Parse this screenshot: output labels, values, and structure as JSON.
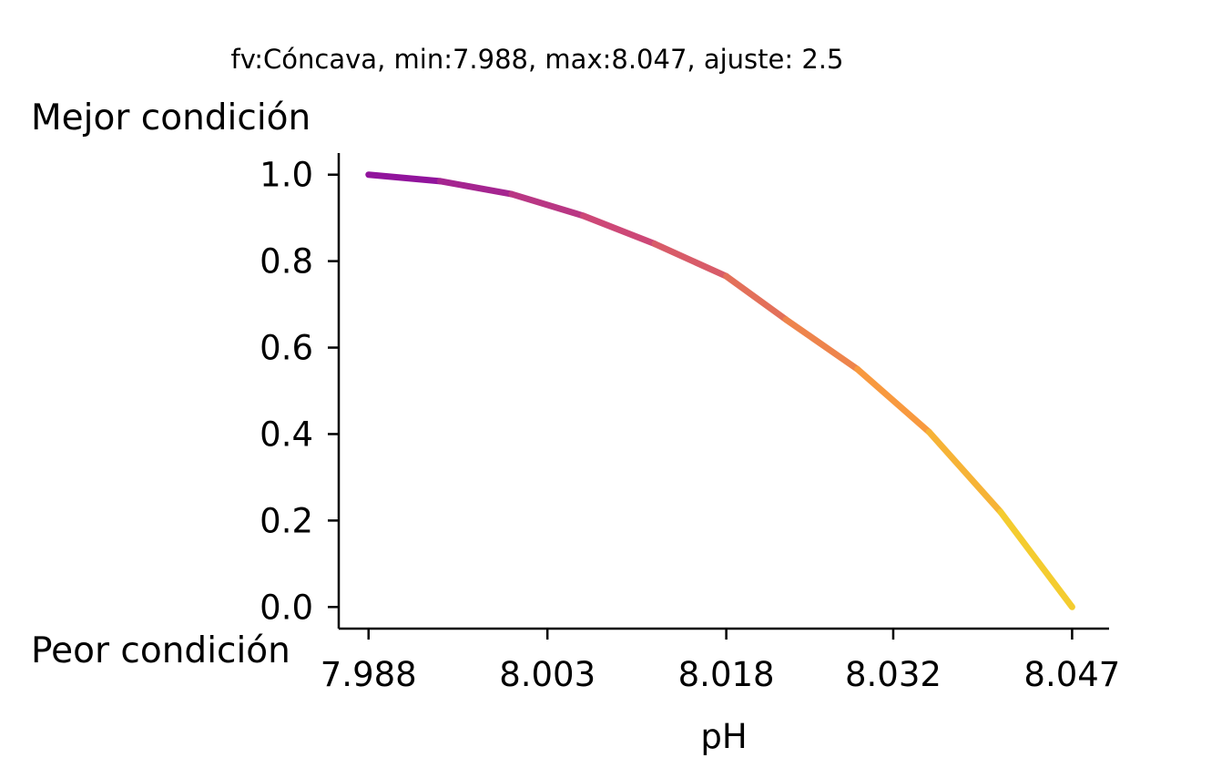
{
  "chart_data": {
    "type": "line",
    "title": "fv:Cóncava, min:7.988, max:8.047, ajuste: 2.5",
    "xlabel": "pH",
    "ylabel": "",
    "best_label": "Mejor condición",
    "worst_label": "Peor condición",
    "xlim": [
      7.9855,
      8.0501
    ],
    "ylim": [
      -0.05,
      1.05
    ],
    "x_ticks": [
      "7.988",
      "8.003",
      "8.018",
      "8.032",
      "8.047"
    ],
    "y_ticks": [
      "0.0",
      "0.2",
      "0.4",
      "0.6",
      "0.8",
      "1.0"
    ],
    "grid": false,
    "legend": "none",
    "colormap": "plasma",
    "series": [
      {
        "x": [
          7.988,
          7.994,
          8.0,
          8.006,
          8.012,
          8.018,
          8.023,
          8.029,
          8.035,
          8.041,
          8.047
        ],
        "y": [
          1.0,
          0.985,
          0.955,
          0.905,
          0.84,
          0.765,
          0.665,
          0.55,
          0.405,
          0.22,
          0.0
        ]
      }
    ]
  }
}
